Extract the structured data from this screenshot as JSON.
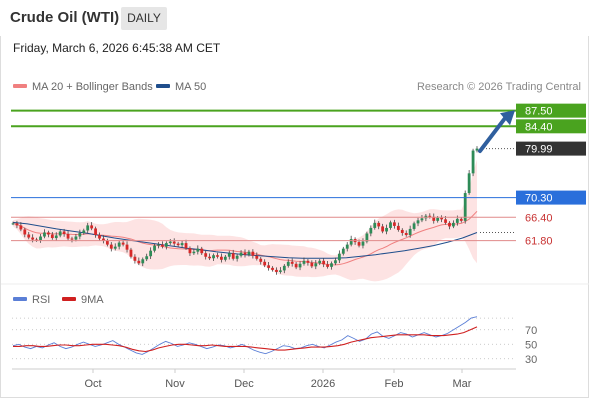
{
  "header": {
    "title": "Crude Oil (WTI)",
    "timeframe": "DAILY"
  },
  "timestamp": "Friday, March 6, 2026 6:45:38 AM CET",
  "legend": {
    "ma20": {
      "label": "MA 20 + Bollinger Bands",
      "color": "#f08080"
    },
    "ma50": {
      "label": "MA 50",
      "color": "#1f4e8c"
    },
    "credit": "Research © 2026 Trading Central",
    "rsi": {
      "label": "RSI",
      "color": "#5b7fd6"
    },
    "rsi_ma": {
      "label": "9MA",
      "color": "#d02020"
    }
  },
  "colors": {
    "resistance": "#4aa31f",
    "current": "#333333",
    "pivot": "#2a6fdb",
    "support": "#e08a8a",
    "up_candle": "#2e8b57",
    "down_candle": "#d62828",
    "arrow": "#2f5f9e",
    "band_fill": "#fde0e0"
  },
  "chart_data": [
    {
      "type": "candlestick",
      "instrument": "Crude Oil (WTI)",
      "timeframe": "DAILY",
      "x_labels": [
        "Oct",
        "Nov",
        "Dec",
        "2026",
        "Feb",
        "Mar"
      ],
      "price_levels": [
        {
          "value": 87.5,
          "label": "87.50",
          "kind": "resistance"
        },
        {
          "value": 84.4,
          "label": "84.40",
          "kind": "resistance"
        },
        {
          "value": 79.99,
          "label": "79.99",
          "kind": "current"
        },
        {
          "value": 70.3,
          "label": "70.30",
          "kind": "pivot"
        },
        {
          "value": 66.4,
          "label": "66.40",
          "kind": "support"
        },
        {
          "value": 61.8,
          "label": "61.80",
          "kind": "support"
        }
      ],
      "candles_close": [
        65.2,
        64.8,
        64.0,
        63.0,
        62.4,
        62.0,
        61.9,
        62.6,
        63.4,
        63.0,
        62.3,
        62.8,
        63.6,
        63.1,
        62.2,
        62.0,
        62.6,
        63.3,
        63.8,
        64.8,
        64.2,
        62.9,
        62.2,
        61.8,
        61.0,
        60.2,
        60.6,
        61.4,
        61.0,
        60.0,
        58.6,
        57.8,
        57.3,
        58.1,
        58.7,
        59.8,
        60.8,
        61.0,
        60.6,
        61.3,
        61.6,
        61.2,
        60.9,
        61.3,
        60.3,
        59.3,
        59.6,
        60.2,
        59.3,
        58.6,
        58.3,
        58.9,
        58.6,
        58.0,
        58.6,
        59.3,
        58.2,
        58.8,
        59.4,
        59.0,
        59.6,
        58.8,
        58.2,
        57.6,
        56.9,
        56.4,
        56.0,
        55.6,
        55.9,
        56.8,
        57.6,
        57.2,
        56.5,
        57.2,
        57.8,
        57.4,
        56.7,
        57.3,
        57.8,
        57.1,
        56.6,
        57.3,
        57.9,
        59.2,
        60.2,
        61.0,
        62.1,
        61.5,
        60.8,
        61.6,
        63.2,
        64.3,
        65.3,
        64.6,
        63.6,
        64.3,
        65.4,
        64.7,
        63.9,
        63.3,
        62.9,
        64.1,
        65.2,
        65.8,
        66.2,
        66.7,
        66.5,
        65.7,
        66.3,
        66.0,
        65.3,
        64.6,
        65.3,
        66.1,
        65.7,
        71.2,
        75.1,
        79.6,
        79.99
      ],
      "ma50_approx": [
        65.4,
        65.1,
        64.6,
        64.1,
        63.7,
        63.3,
        62.8,
        62.3,
        61.9,
        61.5,
        61.1,
        60.7,
        60.3,
        60.0,
        59.6,
        59.3,
        59.0,
        58.8,
        58.6,
        58.4,
        58.3,
        58.3,
        58.3,
        58.4,
        58.7,
        59.0,
        59.4,
        59.8,
        60.3,
        60.8,
        61.5,
        62.3,
        63.4
      ],
      "ylim": [
        54,
        90
      ]
    },
    {
      "type": "line",
      "indicator": "RSI",
      "series": [
        {
          "name": "RSI",
          "values": [
            48,
            50,
            46,
            44,
            47,
            45,
            49,
            52,
            47,
            44,
            46,
            50,
            53,
            50,
            47,
            49,
            52,
            55,
            50,
            46,
            42,
            38,
            36,
            40,
            45,
            50,
            54,
            51,
            47,
            49,
            52,
            50,
            47,
            44,
            46,
            49,
            48,
            45,
            47,
            50,
            46,
            42,
            39,
            37,
            40,
            44,
            48,
            47,
            44,
            45,
            48,
            50,
            47,
            45,
            49,
            53,
            56,
            62,
            58,
            54,
            57,
            64,
            67,
            61,
            58,
            62,
            66,
            64,
            60,
            63,
            66,
            63,
            60,
            62,
            65,
            70,
            75,
            80,
            86,
            88
          ]
        },
        {
          "name": "9MA",
          "values": [
            47,
            47,
            48,
            48,
            47,
            47,
            48,
            49,
            49,
            48,
            48,
            49,
            50,
            50,
            50,
            49,
            48,
            46,
            43,
            41,
            40,
            42,
            45,
            47,
            49,
            50,
            50,
            49,
            48,
            48,
            49,
            48,
            47,
            47,
            47,
            47,
            46,
            45,
            44,
            43,
            42,
            42,
            43,
            44,
            45,
            46,
            46,
            46,
            47,
            48,
            50,
            53,
            55,
            57,
            59,
            60,
            61,
            62,
            63,
            63,
            63,
            63,
            63,
            62,
            62,
            62,
            63,
            64,
            66,
            70,
            74
          ]
        }
      ],
      "y_ticks": [
        "70",
        "50",
        "30"
      ],
      "ylim": [
        20,
        100
      ]
    }
  ]
}
